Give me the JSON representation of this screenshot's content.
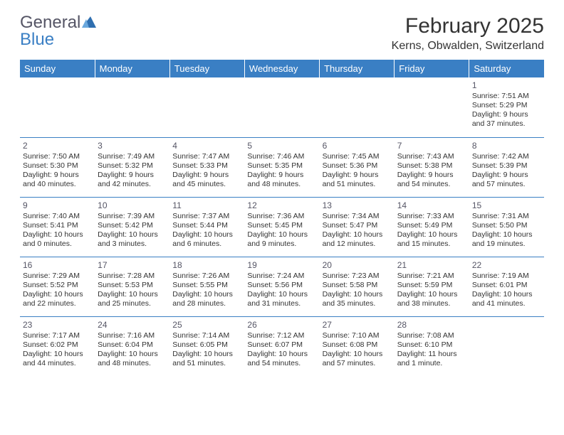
{
  "logo": {
    "part1": "General",
    "part2": "Blue",
    "icon_color": "#2f6fb0"
  },
  "title": "February 2025",
  "location": "Kerns, Obwalden, Switzerland",
  "header_bg": "#3a7fc4",
  "day_headers": [
    "Sunday",
    "Monday",
    "Tuesday",
    "Wednesday",
    "Thursday",
    "Friday",
    "Saturday"
  ],
  "weeks": [
    [
      {
        "empty": true
      },
      {
        "empty": true
      },
      {
        "empty": true
      },
      {
        "empty": true
      },
      {
        "empty": true
      },
      {
        "empty": true
      },
      {
        "day": "1",
        "sunrise": "Sunrise: 7:51 AM",
        "sunset": "Sunset: 5:29 PM",
        "daylight1": "Daylight: 9 hours",
        "daylight2": "and 37 minutes."
      }
    ],
    [
      {
        "day": "2",
        "sunrise": "Sunrise: 7:50 AM",
        "sunset": "Sunset: 5:30 PM",
        "daylight1": "Daylight: 9 hours",
        "daylight2": "and 40 minutes."
      },
      {
        "day": "3",
        "sunrise": "Sunrise: 7:49 AM",
        "sunset": "Sunset: 5:32 PM",
        "daylight1": "Daylight: 9 hours",
        "daylight2": "and 42 minutes."
      },
      {
        "day": "4",
        "sunrise": "Sunrise: 7:47 AM",
        "sunset": "Sunset: 5:33 PM",
        "daylight1": "Daylight: 9 hours",
        "daylight2": "and 45 minutes."
      },
      {
        "day": "5",
        "sunrise": "Sunrise: 7:46 AM",
        "sunset": "Sunset: 5:35 PM",
        "daylight1": "Daylight: 9 hours",
        "daylight2": "and 48 minutes."
      },
      {
        "day": "6",
        "sunrise": "Sunrise: 7:45 AM",
        "sunset": "Sunset: 5:36 PM",
        "daylight1": "Daylight: 9 hours",
        "daylight2": "and 51 minutes."
      },
      {
        "day": "7",
        "sunrise": "Sunrise: 7:43 AM",
        "sunset": "Sunset: 5:38 PM",
        "daylight1": "Daylight: 9 hours",
        "daylight2": "and 54 minutes."
      },
      {
        "day": "8",
        "sunrise": "Sunrise: 7:42 AM",
        "sunset": "Sunset: 5:39 PM",
        "daylight1": "Daylight: 9 hours",
        "daylight2": "and 57 minutes."
      }
    ],
    [
      {
        "day": "9",
        "sunrise": "Sunrise: 7:40 AM",
        "sunset": "Sunset: 5:41 PM",
        "daylight1": "Daylight: 10 hours",
        "daylight2": "and 0 minutes."
      },
      {
        "day": "10",
        "sunrise": "Sunrise: 7:39 AM",
        "sunset": "Sunset: 5:42 PM",
        "daylight1": "Daylight: 10 hours",
        "daylight2": "and 3 minutes."
      },
      {
        "day": "11",
        "sunrise": "Sunrise: 7:37 AM",
        "sunset": "Sunset: 5:44 PM",
        "daylight1": "Daylight: 10 hours",
        "daylight2": "and 6 minutes."
      },
      {
        "day": "12",
        "sunrise": "Sunrise: 7:36 AM",
        "sunset": "Sunset: 5:45 PM",
        "daylight1": "Daylight: 10 hours",
        "daylight2": "and 9 minutes."
      },
      {
        "day": "13",
        "sunrise": "Sunrise: 7:34 AM",
        "sunset": "Sunset: 5:47 PM",
        "daylight1": "Daylight: 10 hours",
        "daylight2": "and 12 minutes."
      },
      {
        "day": "14",
        "sunrise": "Sunrise: 7:33 AM",
        "sunset": "Sunset: 5:49 PM",
        "daylight1": "Daylight: 10 hours",
        "daylight2": "and 15 minutes."
      },
      {
        "day": "15",
        "sunrise": "Sunrise: 7:31 AM",
        "sunset": "Sunset: 5:50 PM",
        "daylight1": "Daylight: 10 hours",
        "daylight2": "and 19 minutes."
      }
    ],
    [
      {
        "day": "16",
        "sunrise": "Sunrise: 7:29 AM",
        "sunset": "Sunset: 5:52 PM",
        "daylight1": "Daylight: 10 hours",
        "daylight2": "and 22 minutes."
      },
      {
        "day": "17",
        "sunrise": "Sunrise: 7:28 AM",
        "sunset": "Sunset: 5:53 PM",
        "daylight1": "Daylight: 10 hours",
        "daylight2": "and 25 minutes."
      },
      {
        "day": "18",
        "sunrise": "Sunrise: 7:26 AM",
        "sunset": "Sunset: 5:55 PM",
        "daylight1": "Daylight: 10 hours",
        "daylight2": "and 28 minutes."
      },
      {
        "day": "19",
        "sunrise": "Sunrise: 7:24 AM",
        "sunset": "Sunset: 5:56 PM",
        "daylight1": "Daylight: 10 hours",
        "daylight2": "and 31 minutes."
      },
      {
        "day": "20",
        "sunrise": "Sunrise: 7:23 AM",
        "sunset": "Sunset: 5:58 PM",
        "daylight1": "Daylight: 10 hours",
        "daylight2": "and 35 minutes."
      },
      {
        "day": "21",
        "sunrise": "Sunrise: 7:21 AM",
        "sunset": "Sunset: 5:59 PM",
        "daylight1": "Daylight: 10 hours",
        "daylight2": "and 38 minutes."
      },
      {
        "day": "22",
        "sunrise": "Sunrise: 7:19 AM",
        "sunset": "Sunset: 6:01 PM",
        "daylight1": "Daylight: 10 hours",
        "daylight2": "and 41 minutes."
      }
    ],
    [
      {
        "day": "23",
        "sunrise": "Sunrise: 7:17 AM",
        "sunset": "Sunset: 6:02 PM",
        "daylight1": "Daylight: 10 hours",
        "daylight2": "and 44 minutes."
      },
      {
        "day": "24",
        "sunrise": "Sunrise: 7:16 AM",
        "sunset": "Sunset: 6:04 PM",
        "daylight1": "Daylight: 10 hours",
        "daylight2": "and 48 minutes."
      },
      {
        "day": "25",
        "sunrise": "Sunrise: 7:14 AM",
        "sunset": "Sunset: 6:05 PM",
        "daylight1": "Daylight: 10 hours",
        "daylight2": "and 51 minutes."
      },
      {
        "day": "26",
        "sunrise": "Sunrise: 7:12 AM",
        "sunset": "Sunset: 6:07 PM",
        "daylight1": "Daylight: 10 hours",
        "daylight2": "and 54 minutes."
      },
      {
        "day": "27",
        "sunrise": "Sunrise: 7:10 AM",
        "sunset": "Sunset: 6:08 PM",
        "daylight1": "Daylight: 10 hours",
        "daylight2": "and 57 minutes."
      },
      {
        "day": "28",
        "sunrise": "Sunrise: 7:08 AM",
        "sunset": "Sunset: 6:10 PM",
        "daylight1": "Daylight: 11 hours",
        "daylight2": "and 1 minute."
      },
      {
        "empty": true
      }
    ]
  ]
}
